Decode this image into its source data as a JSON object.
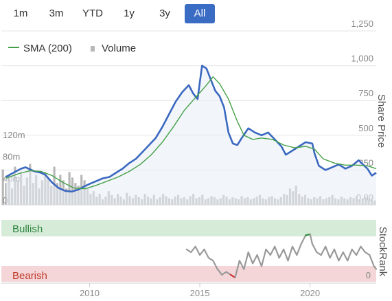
{
  "range_buttons": [
    {
      "label": "1m",
      "active": false
    },
    {
      "label": "3m",
      "active": false
    },
    {
      "label": "YTD",
      "active": false
    },
    {
      "label": "1y",
      "active": false
    },
    {
      "label": "3y",
      "active": false
    },
    {
      "label": "All",
      "active": true
    }
  ],
  "legend": {
    "sma_label": "SMA (200)",
    "volume_label": "Volume"
  },
  "chart_data": [
    {
      "type": "line",
      "series": [
        {
          "name": "Share Price",
          "color": "#3a68c0",
          "points": [
            [
              2006.2,
              200
            ],
            [
              2006.6,
              235
            ],
            [
              2006.9,
              260
            ],
            [
              2007.1,
              270
            ],
            [
              2007.3,
              255
            ],
            [
              2007.5,
              240
            ],
            [
              2007.8,
              230
            ],
            [
              2008.0,
              215
            ],
            [
              2008.3,
              160
            ],
            [
              2008.6,
              120
            ],
            [
              2008.9,
              100
            ],
            [
              2009.2,
              95
            ],
            [
              2009.5,
              110
            ],
            [
              2009.8,
              135
            ],
            [
              2010.0,
              150
            ],
            [
              2010.3,
              170
            ],
            [
              2010.6,
              190
            ],
            [
              2010.9,
              200
            ],
            [
              2011.2,
              230
            ],
            [
              2011.5,
              260
            ],
            [
              2011.8,
              300
            ],
            [
              2012.1,
              330
            ],
            [
              2012.4,
              380
            ],
            [
              2012.7,
              430
            ],
            [
              2013.0,
              480
            ],
            [
              2013.3,
              560
            ],
            [
              2013.6,
              650
            ],
            [
              2013.9,
              740
            ],
            [
              2014.2,
              810
            ],
            [
              2014.5,
              860
            ],
            [
              2014.7,
              800
            ],
            [
              2014.9,
              760
            ],
            [
              2015.1,
              1000
            ],
            [
              2015.3,
              980
            ],
            [
              2015.5,
              900
            ],
            [
              2015.7,
              820
            ],
            [
              2015.9,
              780
            ],
            [
              2016.1,
              700
            ],
            [
              2016.3,
              520
            ],
            [
              2016.5,
              440
            ],
            [
              2016.7,
              430
            ],
            [
              2016.9,
              480
            ],
            [
              2017.2,
              550
            ],
            [
              2017.5,
              520
            ],
            [
              2017.8,
              500
            ],
            [
              2018.1,
              520
            ],
            [
              2018.4,
              470
            ],
            [
              2018.7,
              420
            ],
            [
              2018.9,
              360
            ],
            [
              2019.2,
              390
            ],
            [
              2019.5,
              420
            ],
            [
              2019.8,
              450
            ],
            [
              2020.1,
              440
            ],
            [
              2020.2,
              370
            ],
            [
              2020.4,
              280
            ],
            [
              2020.7,
              250
            ],
            [
              2021.0,
              270
            ],
            [
              2021.3,
              290
            ],
            [
              2021.6,
              260
            ],
            [
              2021.9,
              280
            ],
            [
              2022.2,
              320
            ],
            [
              2022.4,
              290
            ],
            [
              2022.6,
              260
            ],
            [
              2022.8,
              210
            ],
            [
              2023.0,
              230
            ]
          ]
        },
        {
          "name": "SMA (200)",
          "color": "#43a047",
          "points": [
            [
              2006.2,
              190
            ],
            [
              2006.8,
              225
            ],
            [
              2007.3,
              245
            ],
            [
              2007.8,
              240
            ],
            [
              2008.3,
              210
            ],
            [
              2008.8,
              160
            ],
            [
              2009.3,
              120
            ],
            [
              2009.8,
              115
            ],
            [
              2010.3,
              140
            ],
            [
              2010.8,
              170
            ],
            [
              2011.3,
              200
            ],
            [
              2011.8,
              240
            ],
            [
              2012.3,
              290
            ],
            [
              2012.8,
              360
            ],
            [
              2013.3,
              450
            ],
            [
              2013.8,
              560
            ],
            [
              2014.3,
              680
            ],
            [
              2014.8,
              770
            ],
            [
              2015.3,
              860
            ],
            [
              2015.6,
              920
            ],
            [
              2015.9,
              870
            ],
            [
              2016.3,
              760
            ],
            [
              2016.7,
              600
            ],
            [
              2017.0,
              500
            ],
            [
              2017.4,
              470
            ],
            [
              2017.8,
              480
            ],
            [
              2018.3,
              470
            ],
            [
              2018.8,
              430
            ],
            [
              2019.3,
              410
            ],
            [
              2019.8,
              420
            ],
            [
              2020.2,
              400
            ],
            [
              2020.6,
              330
            ],
            [
              2021.1,
              300
            ],
            [
              2021.6,
              285
            ],
            [
              2022.1,
              285
            ],
            [
              2022.6,
              280
            ],
            [
              2023.0,
              260
            ]
          ]
        }
      ],
      "ylabel": "Share Price",
      "yticks": [
        "0.00",
        "250",
        "500",
        "750",
        "1,000",
        "1,250"
      ],
      "ylim": [
        0,
        1250
      ],
      "xticks": [
        "2010",
        "2015",
        "2020"
      ],
      "xlim": [
        2006.0,
        2023.0
      ],
      "volume": {
        "name": "Volume",
        "color": "#b8b8b8",
        "yticks": [
          "0",
          "40m",
          "80m",
          "120m"
        ],
        "ylim": [
          0,
          120
        ],
        "values": [
          65,
          40,
          55,
          30,
          70,
          45,
          60,
          35,
          50,
          75,
          40,
          55,
          30,
          45,
          60,
          50,
          35,
          70,
          40,
          55,
          45,
          30,
          60,
          50,
          40,
          35,
          55,
          45,
          30,
          20,
          25,
          15,
          20,
          10,
          15,
          25,
          18,
          12,
          20,
          15,
          10,
          22,
          16,
          12,
          18,
          14,
          10,
          20,
          15,
          12,
          18,
          10,
          14,
          20,
          16,
          12,
          10,
          15,
          18,
          12,
          14,
          10,
          16,
          20,
          12,
          14,
          18,
          10,
          12,
          16,
          14,
          10,
          12,
          18,
          15,
          10,
          14,
          12,
          10,
          16,
          12,
          14,
          10,
          12,
          15,
          18,
          12,
          10,
          14,
          16,
          12,
          10,
          14,
          20,
          18,
          30,
          25,
          35,
          20,
          15,
          18,
          12,
          10,
          14,
          12,
          16,
          10,
          12,
          14,
          18,
          12,
          10,
          15,
          12,
          10,
          14,
          12,
          16,
          10,
          12,
          14,
          10,
          12,
          8
        ]
      },
      "grid": true,
      "legend": "top-left"
    },
    {
      "type": "line",
      "ylabel": "StockRank",
      "zones": [
        {
          "label": "Bullish",
          "color": "#d6ecd8",
          "text_color": "#2e8540"
        },
        {
          "label": "Bearish",
          "color": "#f5d6d8",
          "text_color": "#c0392b"
        }
      ],
      "yticks": [
        "0"
      ],
      "ylim": [
        0,
        100
      ],
      "series": [
        {
          "name": "StockRank",
          "points": [
            [
              2014.4,
              55
            ],
            [
              2014.6,
              50
            ],
            [
              2014.8,
              60
            ],
            [
              2015.0,
              45
            ],
            [
              2015.2,
              55
            ],
            [
              2015.4,
              40
            ],
            [
              2015.6,
              35
            ],
            [
              2015.8,
              20
            ],
            [
              2016.0,
              10
            ],
            [
              2016.2,
              15
            ],
            [
              2016.4,
              10
            ],
            [
              2016.6,
              5
            ],
            [
              2016.8,
              35
            ],
            [
              2017.0,
              20
            ],
            [
              2017.2,
              50
            ],
            [
              2017.4,
              30
            ],
            [
              2017.6,
              45
            ],
            [
              2017.8,
              25
            ],
            [
              2018.0,
              55
            ],
            [
              2018.2,
              45
            ],
            [
              2018.4,
              60
            ],
            [
              2018.6,
              40
            ],
            [
              2018.8,
              55
            ],
            [
              2019.0,
              35
            ],
            [
              2019.2,
              60
            ],
            [
              2019.4,
              45
            ],
            [
              2019.6,
              65
            ],
            [
              2019.8,
              80
            ],
            [
              2020.0,
              82
            ],
            [
              2020.1,
              65
            ],
            [
              2020.3,
              50
            ],
            [
              2020.5,
              45
            ],
            [
              2020.7,
              60
            ],
            [
              2020.9,
              40
            ],
            [
              2021.1,
              55
            ],
            [
              2021.3,
              35
            ],
            [
              2021.5,
              50
            ],
            [
              2021.7,
              35
            ],
            [
              2021.9,
              55
            ],
            [
              2022.1,
              45
            ],
            [
              2022.3,
              60
            ],
            [
              2022.5,
              50
            ],
            [
              2022.7,
              45
            ],
            [
              2022.9,
              25
            ],
            [
              2023.0,
              20
            ]
          ]
        }
      ]
    }
  ]
}
